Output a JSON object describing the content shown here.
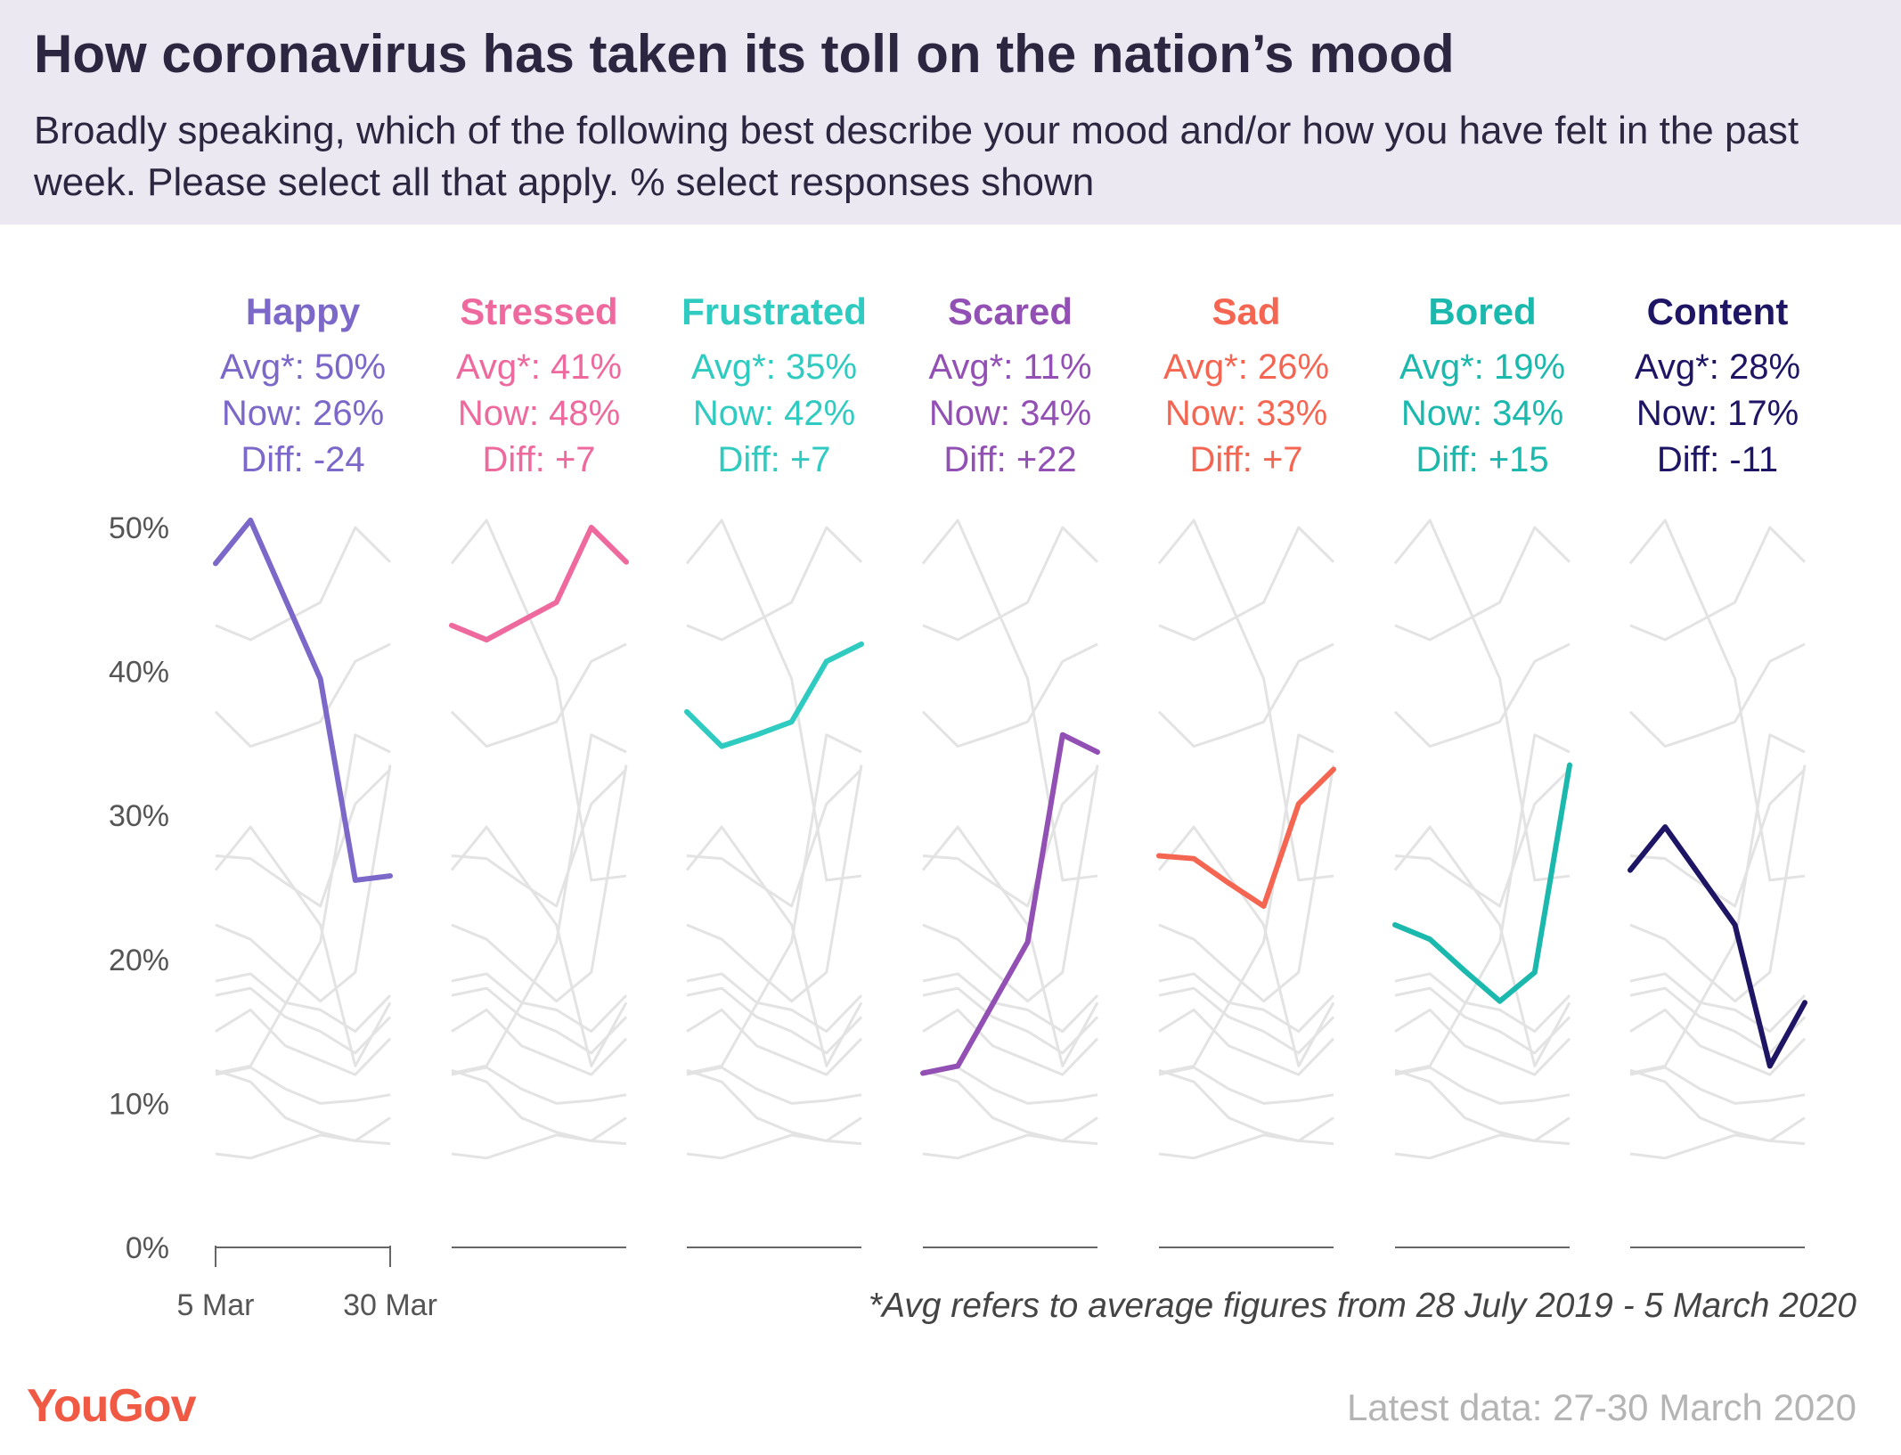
{
  "header": {
    "title": "How coronavirus has taken its toll on the nation’s mood",
    "subtitle": "Broadly speaking, which of the following best describe your mood and/or how you have felt in the past week. Please select all that apply. % select responses shown"
  },
  "footnote": "*Avg refers to average figures from 28 July 2019 - 5 March 2020",
  "logo": "YouGov",
  "latest": "Latest data: 27-30 March 2020",
  "colors": {
    "background_lines": "#e3e3e3",
    "axis": "#555555"
  },
  "chart_data": {
    "type": "line",
    "layout": "small-multiples",
    "ylim": [
      0,
      50
    ],
    "y_ticks": [
      "0%",
      "10%",
      "20%",
      "30%",
      "40%",
      "50%"
    ],
    "x_tick_labels": [
      "5 Mar",
      "30 Mar"
    ],
    "grid": false,
    "series": [
      {
        "name": "Happy",
        "color": "#7b68c8",
        "avg": "Avg*: 50%",
        "now": "Now: 26%",
        "diff": "Diff: -24",
        "values": [
          47.5,
          50.5,
          45,
          39.5,
          25.5,
          25.8
        ]
      },
      {
        "name": "Stressed",
        "color": "#ee6a9e",
        "avg": "Avg*: 41%",
        "now": "Now: 48%",
        "diff": "Diff: +7",
        "values": [
          43.2,
          42.2,
          43.5,
          44.8,
          50,
          47.6
        ]
      },
      {
        "name": "Frustrated",
        "color": "#2fcbc0",
        "avg": "Avg*: 35%",
        "now": "Now: 42%",
        "diff": "Diff: +7",
        "values": [
          37.2,
          34.8,
          35.6,
          36.5,
          40.7,
          41.9
        ]
      },
      {
        "name": "Scared",
        "color": "#9350b4",
        "avg": "Avg*: 11%",
        "now": "Now: 34%",
        "diff": "Diff: +22",
        "values": [
          12.1,
          12.6,
          16.9,
          21.2,
          35.6,
          34.4
        ]
      },
      {
        "name": "Sad",
        "color": "#f56652",
        "avg": "Avg*: 26%",
        "now": "Now: 33%",
        "diff": "Diff: +7",
        "values": [
          27.2,
          27.0,
          25.3,
          23.7,
          30.8,
          33.2
        ]
      },
      {
        "name": "Bored",
        "color": "#1bb8ad",
        "avg": "Avg*: 19%",
        "now": "Now: 34%",
        "diff": "Diff: +15",
        "values": [
          22.4,
          21.4,
          19.2,
          17.1,
          19.1,
          33.5
        ]
      },
      {
        "name": "Content",
        "color": "#1e1565",
        "avg": "Avg*: 28%",
        "now": "Now: 17%",
        "diff": "Diff: -11",
        "values": [
          26.2,
          29.2,
          25.8,
          22.4,
          12.6,
          17.0
        ]
      }
    ],
    "other_series": [
      {
        "values": [
          18.5,
          19.0,
          17.0,
          16.5,
          15.0,
          17.5
        ]
      },
      {
        "values": [
          17.5,
          18.0,
          16.0,
          15.0,
          13.5,
          16.0
        ]
      },
      {
        "values": [
          15.0,
          16.5,
          14.0,
          13.0,
          12.0,
          14.5
        ]
      },
      {
        "values": [
          12.3,
          11.5,
          9.0,
          8.0,
          7.4,
          7.2
        ]
      },
      {
        "values": [
          6.5,
          6.2,
          7.0,
          7.8,
          7.4,
          9.0
        ]
      },
      {
        "values": [
          12.0,
          12.5,
          11.0,
          10.0,
          10.2,
          10.6
        ]
      }
    ]
  }
}
